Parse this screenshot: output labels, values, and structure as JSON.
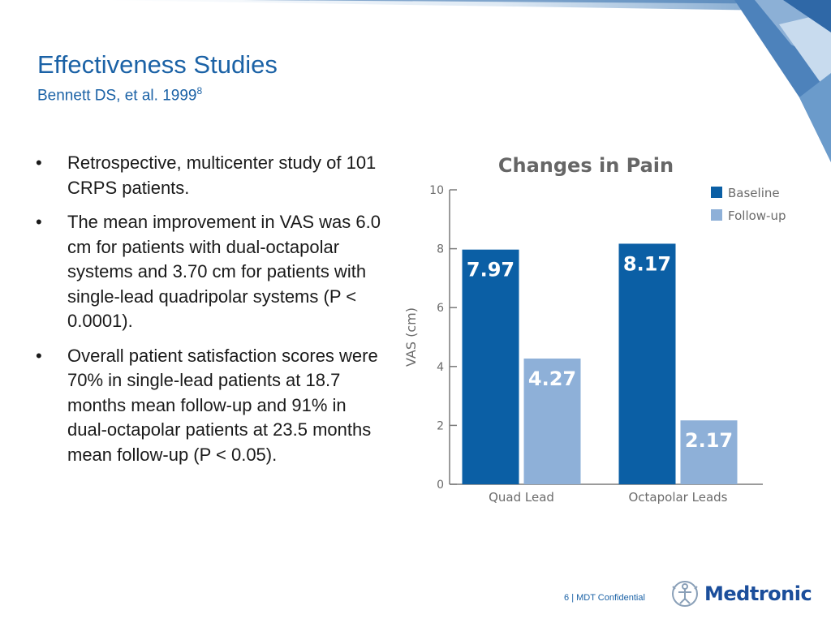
{
  "slide": {
    "title": "Effectiveness Studies",
    "subtitle": "Bennett DS, et al. 1999",
    "subtitle_ref": "8"
  },
  "bullets": [
    {
      "marker": "•",
      "text": "Retrospective, multicenter study of 101 CRPS patients."
    },
    {
      "marker": "•",
      "text": "The mean improvement in VAS was 6.0 cm for patients with dual-octapolar systems and 3.70 cm for patients with single-lead quadripolar systems (P < 0.0001)."
    },
    {
      "marker": "•",
      "text": "Overall patient satisfaction scores were 70% in single-lead patients at 18.7 months mean follow-up and 91% in dual-octapolar patients at 23.5 months mean follow-up (P < 0.05)."
    }
  ],
  "chart_data": {
    "type": "bar",
    "title": "Changes in Pain",
    "ylabel": "VAS (cm)",
    "xlabel": "",
    "categories": [
      "Quad Lead",
      "Octapolar Leads"
    ],
    "series": [
      {
        "name": "Baseline",
        "values": [
          7.97,
          8.17
        ],
        "labels": [
          "7.97",
          "8.17"
        ],
        "color": "#0b5fa5"
      },
      {
        "name": "Follow-up",
        "values": [
          4.27,
          2.17
        ],
        "labels": [
          "4.27",
          "2.17"
        ],
        "color": "#8eb0d8"
      }
    ],
    "ylim": [
      0,
      10
    ],
    "yticks": [
      "0",
      "2",
      "4",
      "6",
      "8",
      "10"
    ],
    "legend_position": "top-right",
    "grid": false
  },
  "footer": {
    "page": "6",
    "separator": "|",
    "confidential": "MDT Confidential"
  },
  "logo": {
    "wordmark": "Medtronic",
    "color": "#1b4e9b"
  },
  "colors": {
    "title": "#1b62a6",
    "body_text": "#1a1a1a",
    "accent": "#1b62a6"
  }
}
